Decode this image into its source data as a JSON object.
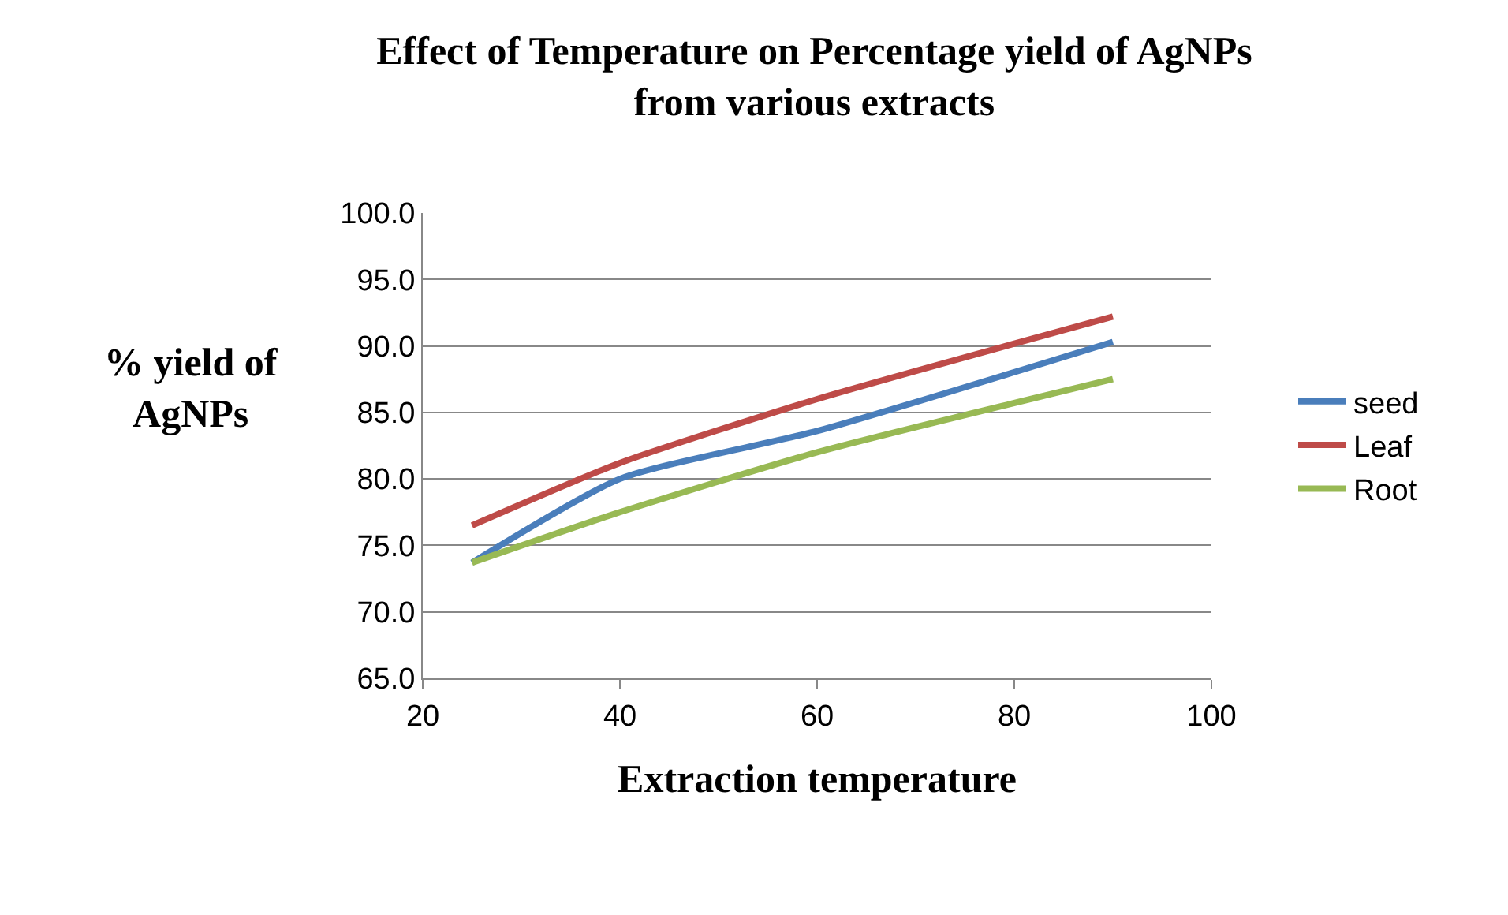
{
  "chart_data": {
    "type": "line",
    "title": "Effect of Temperature on Percentage yield of AgNPs\nfrom various extracts",
    "xlabel": "Extraction temperature",
    "ylabel": "% yield of\nAgNPs",
    "x": [
      25,
      40,
      60,
      90
    ],
    "series": [
      {
        "name": "seed",
        "color": "#4a7ebb",
        "values": [
          73.7,
          80.0,
          83.6,
          90.3
        ]
      },
      {
        "name": "Leaf",
        "color": "#be4b48",
        "values": [
          76.5,
          81.2,
          86.0,
          92.2
        ]
      },
      {
        "name": "Root",
        "color": "#98b954",
        "values": [
          73.7,
          77.5,
          82.0,
          87.5
        ]
      }
    ],
    "xlim": [
      20,
      100
    ],
    "xticks": [
      20,
      40,
      60,
      80,
      100
    ],
    "ylim": [
      65,
      100
    ],
    "yticks": [
      {
        "value": 65,
        "label": "65.0"
      },
      {
        "value": 70,
        "label": "70.0"
      },
      {
        "value": 75,
        "label": "75.0"
      },
      {
        "value": 80,
        "label": "80.0"
      },
      {
        "value": 85,
        "label": "85.0"
      },
      {
        "value": 90,
        "label": "90.0"
      },
      {
        "value": 95,
        "label": "95.0"
      },
      {
        "value": 100,
        "label": "100.0"
      }
    ],
    "grid": "y",
    "legend": "right",
    "marker": "none",
    "line_style": "solid"
  }
}
